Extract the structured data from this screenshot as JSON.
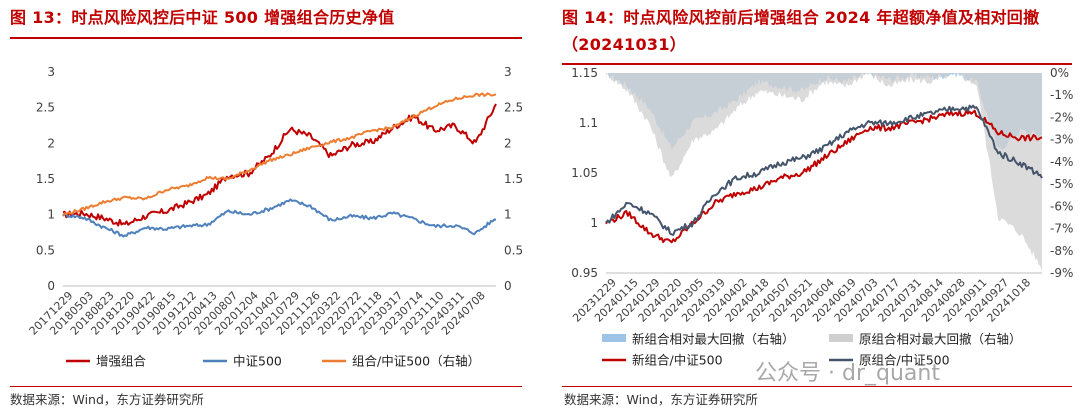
{
  "figures": [
    {
      "title": "图 13：时点风险风控后中证 500 增强组合历史净值",
      "source": "数据来源：Wind，东方证券研究所"
    },
    {
      "title": "图 14：时点风险风控前后增强组合 2024 年超额净值及相对回撤（20241031）",
      "source": "数据来源：Wind，东方证券研究所"
    }
  ],
  "watermark": "公众号 · dr_quant",
  "chart_data": [
    {
      "type": "line",
      "title": "图 13：时点风险风控后中证 500 增强组合历史净值",
      "x_ticks": [
        "20171229",
        "20180503",
        "20180823",
        "20181220",
        "20190422",
        "20190815",
        "20191212",
        "20200413",
        "20200807",
        "20201204",
        "20210402",
        "20210729",
        "20211126",
        "20220322",
        "20220722",
        "20221118",
        "20230317",
        "20230714",
        "20231110",
        "20240311",
        "20240708"
      ],
      "ylim": [
        0,
        3
      ],
      "y_ticks": [
        "0",
        "0.5",
        "1",
        "1.5",
        "2",
        "2.5",
        "3"
      ],
      "y2lim": [
        0,
        3
      ],
      "y2_ticks": [
        "0",
        "0.5",
        "1",
        "1.5",
        "2",
        "2.5",
        "3"
      ],
      "legend_position": "bottom",
      "series": [
        {
          "name": "增强组合",
          "axis": "left",
          "color": "#c00000",
          "values": [
            1.0,
            1.02,
            0.95,
            0.86,
            0.98,
            1.05,
            1.16,
            1.28,
            1.55,
            1.58,
            1.82,
            2.2,
            2.1,
            1.82,
            1.98,
            2.02,
            2.22,
            2.38,
            2.18,
            2.25,
            2.0,
            2.55
          ]
        },
        {
          "name": "中证500",
          "axis": "left",
          "color": "#4f81bd",
          "values": [
            1.0,
            0.96,
            0.82,
            0.7,
            0.82,
            0.8,
            0.84,
            0.86,
            1.05,
            1.0,
            1.08,
            1.2,
            1.12,
            0.92,
            0.98,
            0.95,
            1.02,
            0.94,
            0.84,
            0.85,
            0.74,
            0.95
          ]
        },
        {
          "name": "组合/中证500（右轴）",
          "axis": "right",
          "color": "#ed7d31",
          "values": [
            1.0,
            1.08,
            1.18,
            1.24,
            1.22,
            1.35,
            1.4,
            1.52,
            1.5,
            1.62,
            1.76,
            1.84,
            1.94,
            2.02,
            2.08,
            2.18,
            2.22,
            2.38,
            2.52,
            2.62,
            2.68,
            2.68
          ]
        }
      ]
    },
    {
      "type": "line",
      "title": "图 14：时点风险风控前后增强组合 2024 年超额净值及相对回撤（20241031）",
      "x_ticks": [
        "20231229",
        "20240115",
        "20240129",
        "20240220",
        "20240305",
        "20240319",
        "20240402",
        "20240418",
        "20240507",
        "20240521",
        "20240604",
        "20240619",
        "20240703",
        "20240717",
        "20240731",
        "20240814",
        "20240828",
        "20240911",
        "20240927",
        "20241018"
      ],
      "ylim": [
        0.95,
        1.15
      ],
      "y_ticks": [
        "0.95",
        "1",
        "1.05",
        "1.1",
        "1.15"
      ],
      "y2lim": [
        -9,
        0
      ],
      "y2_ticks": [
        "-9%",
        "-8%",
        "-7%",
        "-6%",
        "-5%",
        "-4%",
        "-3%",
        "-2%",
        "-1%",
        "0%"
      ],
      "legend_position": "bottom",
      "series": [
        {
          "name": "新组合相对最大回撤（右轴）",
          "axis": "right",
          "type": "area",
          "color": "#9dc3e6",
          "values": [
            0,
            -0.6,
            -1.6,
            -3.4,
            -2.2,
            -1.8,
            -1.2,
            -0.4,
            -0.6,
            -0.8,
            -0.2,
            -0.4,
            0,
            -0.3,
            -0.1,
            -0.2,
            0,
            -0.4,
            -3.5,
            -2.6,
            -2.8
          ]
        },
        {
          "name": "原组合相对最大回撤（右轴）",
          "axis": "right",
          "type": "area",
          "color": "#cfcfcf",
          "values": [
            0,
            -0.8,
            -2.3,
            -4.8,
            -3.0,
            -2.6,
            -1.6,
            -0.8,
            -1.0,
            -1.2,
            -0.4,
            -0.6,
            0,
            -0.6,
            -0.3,
            -0.4,
            0,
            -0.5,
            -6.5,
            -7.2,
            -8.8
          ]
        },
        {
          "name": "新组合/中证500",
          "axis": "left",
          "type": "line",
          "color": "#c00000",
          "values": [
            1.0,
            1.01,
            0.99,
            0.98,
            1.0,
            1.02,
            1.03,
            1.035,
            1.045,
            1.05,
            1.065,
            1.08,
            1.095,
            1.095,
            1.1,
            1.105,
            1.11,
            1.11,
            1.09,
            1.085,
            1.085
          ]
        },
        {
          "name": "原组合/中证500",
          "axis": "left",
          "type": "line",
          "color": "#44546a",
          "values": [
            1.0,
            1.02,
            1.01,
            0.99,
            1.0,
            1.03,
            1.045,
            1.05,
            1.06,
            1.065,
            1.075,
            1.09,
            1.1,
            1.1,
            1.105,
            1.11,
            1.115,
            1.115,
            1.07,
            1.06,
            1.047
          ]
        }
      ]
    }
  ]
}
